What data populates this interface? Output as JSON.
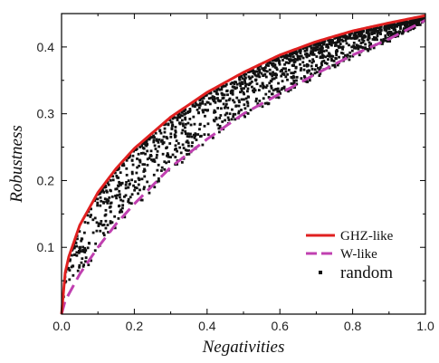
{
  "chart_data": {
    "type": "scatter",
    "title": "",
    "xlabel": "Negativities",
    "ylabel": "Robustness",
    "xlim": [
      0.0,
      1.0
    ],
    "ylim": [
      0.0,
      0.45
    ],
    "x_ticks": [
      "0.0",
      "0.2",
      "0.4",
      "0.6",
      "0.8",
      "1.0"
    ],
    "y_ticks": [
      "0.1",
      "0.2",
      "0.3",
      "0.4"
    ],
    "grid": false,
    "legend_position": "bottom-right",
    "series": [
      {
        "name": "GHZ-like",
        "type": "line",
        "style": "solid",
        "color": "#e02020",
        "x": [
          0.0,
          0.01,
          0.02,
          0.05,
          0.1,
          0.15,
          0.2,
          0.3,
          0.4,
          0.5,
          0.6,
          0.7,
          0.8,
          0.9,
          1.0
        ],
        "y": [
          0.0,
          0.062,
          0.086,
          0.133,
          0.182,
          0.218,
          0.248,
          0.295,
          0.332,
          0.362,
          0.388,
          0.408,
          0.424,
          0.436,
          0.447
        ]
      },
      {
        "name": "W-like",
        "type": "line",
        "style": "dashed",
        "color": "#c040b0",
        "x": [
          0.0,
          0.01,
          0.02,
          0.05,
          0.1,
          0.15,
          0.2,
          0.3,
          0.4,
          0.5,
          0.6,
          0.7,
          0.8,
          0.9,
          1.0
        ],
        "y": [
          0.0,
          0.02,
          0.03,
          0.06,
          0.1,
          0.135,
          0.165,
          0.22,
          0.262,
          0.3,
          0.33,
          0.36,
          0.388,
          0.412,
          0.44
        ]
      },
      {
        "name": "random",
        "type": "scatter",
        "color": "#111111",
        "description_count": 1500,
        "x": [],
        "y": []
      }
    ]
  }
}
